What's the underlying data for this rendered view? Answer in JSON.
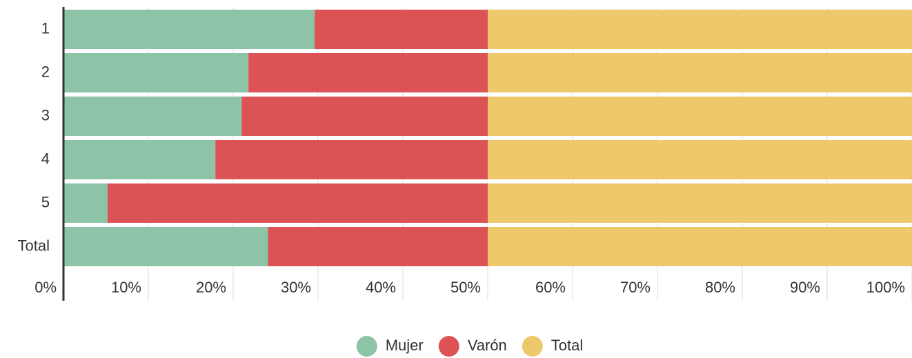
{
  "chart_data": {
    "type": "stacked_bar_horizontal",
    "categories": [
      "1",
      "2",
      "3",
      "4",
      "5",
      "Total"
    ],
    "series": [
      {
        "name": "Mujer",
        "color": "#8dc3a7",
        "values": [
          29.6,
          21.8,
          21.0,
          17.9,
          5.2,
          24.1
        ]
      },
      {
        "name": "Varón",
        "color": "#dc5356",
        "values": [
          20.4,
          28.2,
          29.0,
          32.1,
          44.8,
          25.9
        ]
      },
      {
        "name": "Total",
        "color": "#eec96b",
        "values": [
          50,
          50,
          50,
          50,
          50,
          50
        ]
      }
    ],
    "xlim": [
      0,
      100
    ],
    "xticks": [
      {
        "value": 0,
        "label": "0%"
      },
      {
        "value": 10,
        "label": "10%"
      },
      {
        "value": 20,
        "label": "20%"
      },
      {
        "value": 30,
        "label": "30%"
      },
      {
        "value": 40,
        "label": "40%"
      },
      {
        "value": 50,
        "label": "50%"
      },
      {
        "value": 60,
        "label": "60%"
      },
      {
        "value": 70,
        "label": "70%"
      },
      {
        "value": 80,
        "label": "80%"
      },
      {
        "value": 90,
        "label": "90%"
      },
      {
        "value": 100,
        "label": "100%"
      }
    ],
    "grid": true,
    "legend": "bottom"
  }
}
